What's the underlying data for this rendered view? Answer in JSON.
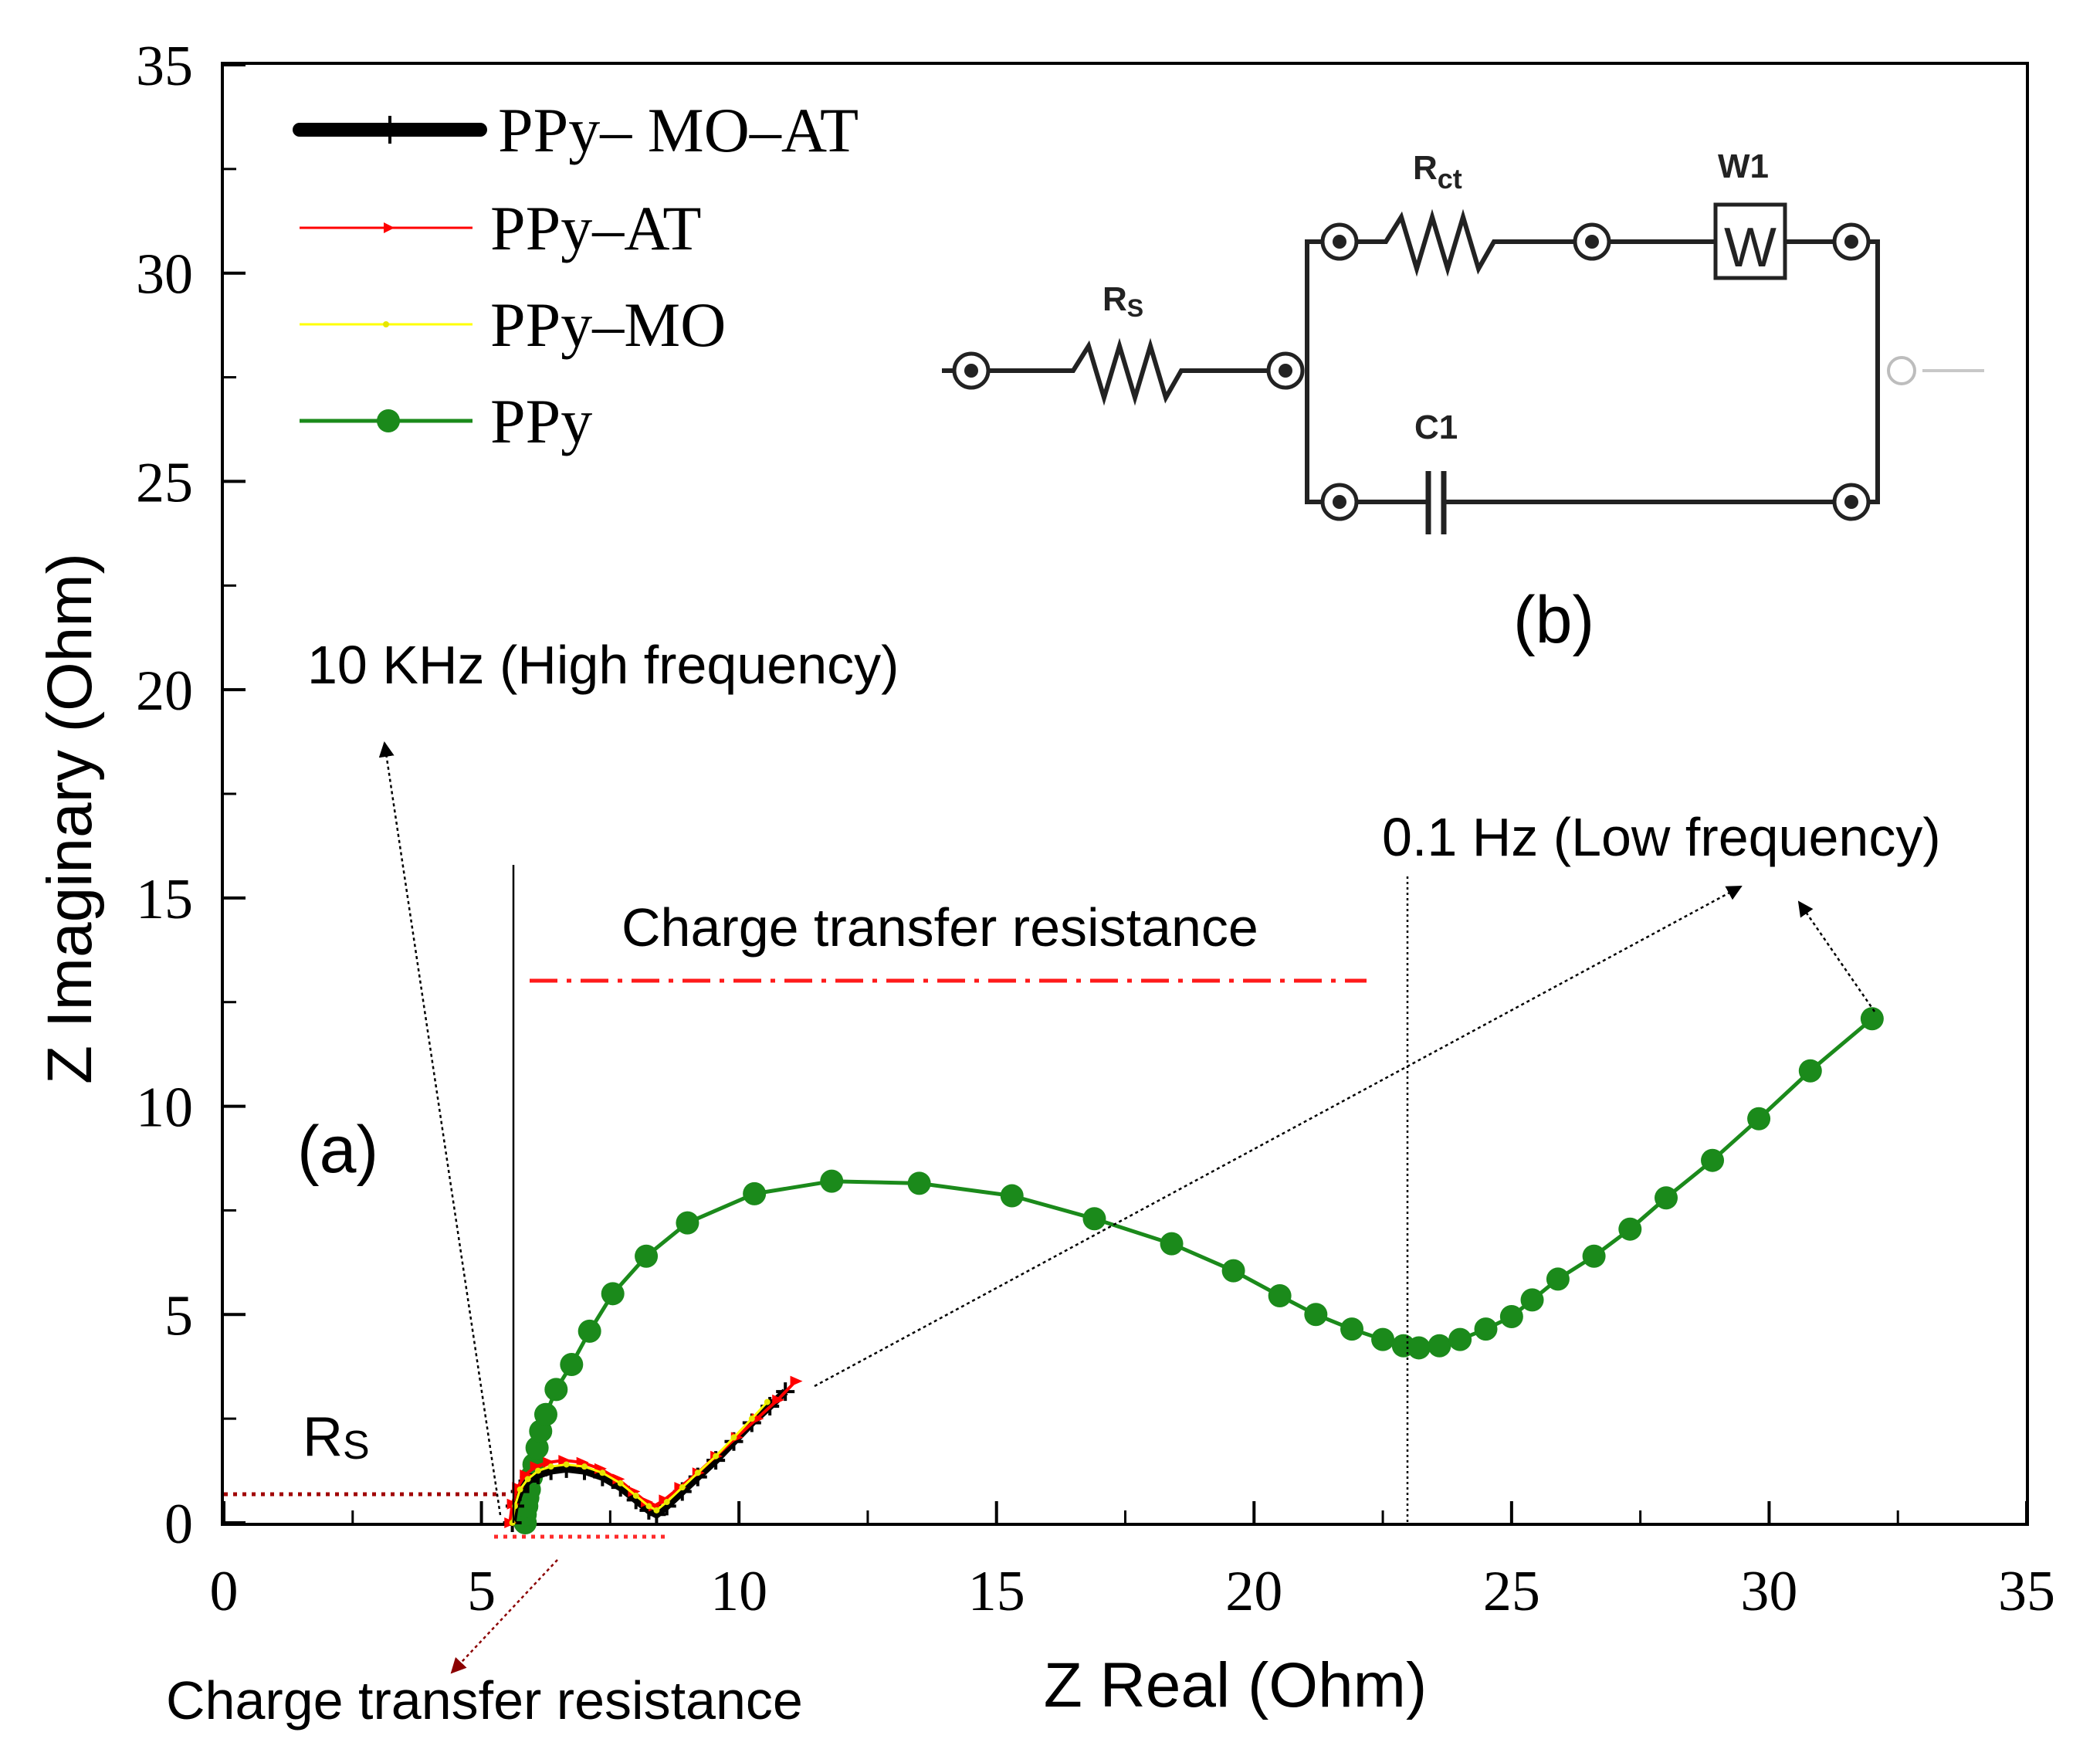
{
  "chart_data": {
    "type": "line",
    "title": "",
    "xlabel": "Z Real (Ohm)",
    "ylabel": "Z Imaginary (Ohm)",
    "xlim": [
      0,
      35
    ],
    "ylim": [
      0,
      35
    ],
    "xticks": [
      "0",
      "5",
      "10",
      "15",
      "20",
      "25",
      "30",
      "35"
    ],
    "yticks": [
      "0",
      "5",
      "10",
      "15",
      "20",
      "25",
      "30",
      "35"
    ],
    "legend_position": "top-left",
    "series": [
      {
        "name": "PPy– MO–AT",
        "color": "#000000",
        "marker": "plus",
        "x": [
          5.6,
          5.65,
          5.75,
          5.9,
          6.1,
          6.35,
          6.65,
          7.0,
          7.35,
          7.7,
          8.0,
          8.25,
          8.4,
          8.6,
          8.9,
          9.2,
          9.55,
          9.9,
          10.25,
          10.6,
          10.9
        ],
        "y": [
          0.0,
          0.4,
          0.75,
          1.0,
          1.15,
          1.25,
          1.3,
          1.25,
          1.1,
          0.85,
          0.55,
          0.3,
          0.2,
          0.4,
          0.75,
          1.1,
          1.5,
          1.95,
          2.4,
          2.8,
          3.15
        ]
      },
      {
        "name": "PPy–AT",
        "color": "#ff0000",
        "marker": "triangle",
        "x": [
          5.55,
          5.6,
          5.7,
          5.85,
          6.05,
          6.3,
          6.6,
          6.95,
          7.3,
          7.65,
          7.95,
          8.2,
          8.35,
          8.55,
          8.85,
          9.2,
          9.55,
          9.95,
          10.35,
          10.75,
          11.1
        ],
        "y": [
          0.0,
          0.45,
          0.85,
          1.15,
          1.35,
          1.45,
          1.5,
          1.45,
          1.3,
          1.05,
          0.75,
          0.5,
          0.4,
          0.55,
          0.85,
          1.2,
          1.6,
          2.05,
          2.5,
          2.95,
          3.4
        ]
      },
      {
        "name": "PPy–MO",
        "color": "#ffff00",
        "marker": "dot",
        "x": [
          5.6,
          5.65,
          5.75,
          5.9,
          6.1,
          6.35,
          6.65,
          7.0,
          7.35,
          7.7,
          8.0,
          8.25,
          8.4,
          8.6,
          8.9,
          9.2,
          9.55,
          9.9,
          10.25,
          10.55
        ],
        "y": [
          0.0,
          0.4,
          0.8,
          1.05,
          1.25,
          1.35,
          1.4,
          1.35,
          1.2,
          0.95,
          0.65,
          0.4,
          0.3,
          0.5,
          0.85,
          1.2,
          1.6,
          2.05,
          2.5,
          2.9
        ]
      },
      {
        "name": "PPy",
        "color": "#1b8a1b",
        "marker": "circle",
        "x": [
          5.85,
          5.85,
          5.88,
          5.9,
          5.93,
          5.97,
          6.02,
          6.08,
          6.15,
          6.25,
          6.45,
          6.75,
          7.1,
          7.55,
          8.2,
          9.0,
          10.3,
          11.8,
          13.5,
          15.3,
          16.9,
          18.4,
          19.6,
          20.5,
          21.2,
          21.9,
          22.5,
          22.9,
          23.2,
          23.6,
          24.0,
          24.5,
          25.0,
          25.4,
          25.9,
          26.6,
          27.3,
          28.0,
          28.9,
          29.8,
          30.8,
          32.0
        ],
        "y": [
          0.0,
          0.2,
          0.4,
          0.6,
          0.8,
          1.1,
          1.4,
          1.8,
          2.2,
          2.6,
          3.2,
          3.8,
          4.6,
          5.5,
          6.4,
          7.2,
          7.9,
          8.2,
          8.15,
          7.85,
          7.3,
          6.7,
          6.05,
          5.45,
          5.0,
          4.65,
          4.4,
          4.25,
          4.2,
          4.25,
          4.4,
          4.65,
          4.95,
          5.35,
          5.85,
          6.4,
          7.05,
          7.8,
          8.7,
          9.7,
          10.85,
          12.1
        ]
      }
    ],
    "annotations": {
      "panel_a": "(a)",
      "panel_b": "(b)",
      "high_freq": "10 KHz (High frequency)",
      "low_freq": "0.1 Hz (Low frequency)",
      "ct_top": "Charge transfer resistance",
      "ct_bottom": "Charge transfer resistance",
      "rs_label": "R",
      "rs_sub": "S"
    },
    "circuit": {
      "rs": "R",
      "rs_sub": "S",
      "rct": "R",
      "rct_sub": "ct",
      "w1": "W1",
      "w_box": "W",
      "c1": "C1"
    }
  }
}
